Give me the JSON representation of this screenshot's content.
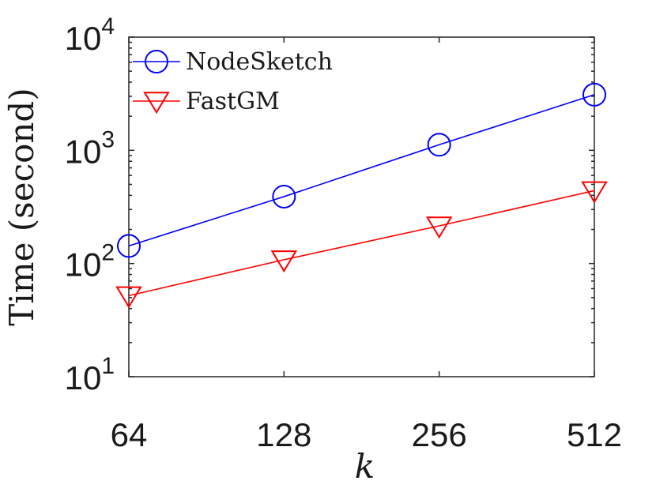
{
  "chart_data": {
    "type": "line",
    "x_scale": "log2",
    "y_scale": "log10",
    "categories": [
      "64",
      "128",
      "256",
      "512"
    ],
    "x": [
      64,
      128,
      256,
      512
    ],
    "xlabel": "k",
    "ylabel": "Time (second)",
    "ylim": [
      10,
      10000
    ],
    "y_ticks": [
      {
        "base": "10",
        "exp": "1"
      },
      {
        "base": "10",
        "exp": "2"
      },
      {
        "base": "10",
        "exp": "3"
      },
      {
        "base": "10",
        "exp": "4"
      }
    ],
    "legend_position": "top-left",
    "grid": false,
    "series": [
      {
        "name": "NodeSketch",
        "color": "#0000ff",
        "marker": "circle",
        "values": [
          143,
          390,
          1120,
          3100
        ]
      },
      {
        "name": "FastGM",
        "color": "#ff0000",
        "marker": "triangle-down",
        "values": [
          52,
          108,
          215,
          440
        ]
      }
    ]
  }
}
